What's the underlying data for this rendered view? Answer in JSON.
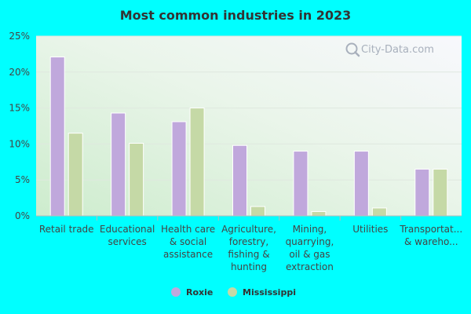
{
  "chart_data": {
    "type": "bar",
    "title": "Most common industries in 2023",
    "xlabel": "",
    "ylabel": "",
    "ylim": [
      0,
      25
    ],
    "yticks": [
      {
        "value": 0,
        "label": "0%"
      },
      {
        "value": 5,
        "label": "5%"
      },
      {
        "value": 10,
        "label": "10%"
      },
      {
        "value": 15,
        "label": "15%"
      },
      {
        "value": 20,
        "label": "20%"
      },
      {
        "value": 25,
        "label": "25%"
      }
    ],
    "categories": [
      [
        "Retail trade"
      ],
      [
        "Educational",
        "services"
      ],
      [
        "Health care",
        "& social",
        "assistance"
      ],
      [
        "Agriculture,",
        "forestry,",
        "fishing &",
        "hunting"
      ],
      [
        "Mining,",
        "quarrying,",
        "oil & gas",
        "extraction"
      ],
      [
        "Utilities"
      ],
      [
        "Transportat...",
        "& wareho..."
      ]
    ],
    "series": [
      {
        "name": "Roxie",
        "color": "#c0a8dc",
        "values": [
          22.1,
          14.3,
          13.1,
          9.8,
          9.0,
          9.0,
          6.5
        ]
      },
      {
        "name": "Mississippi",
        "color": "#c5d9a6",
        "values": [
          11.5,
          10.1,
          15.0,
          1.3,
          0.6,
          1.1,
          6.5
        ]
      }
    ],
    "legend_position": "bottom",
    "grid": true
  },
  "watermark": {
    "text": "City-Data.com"
  }
}
